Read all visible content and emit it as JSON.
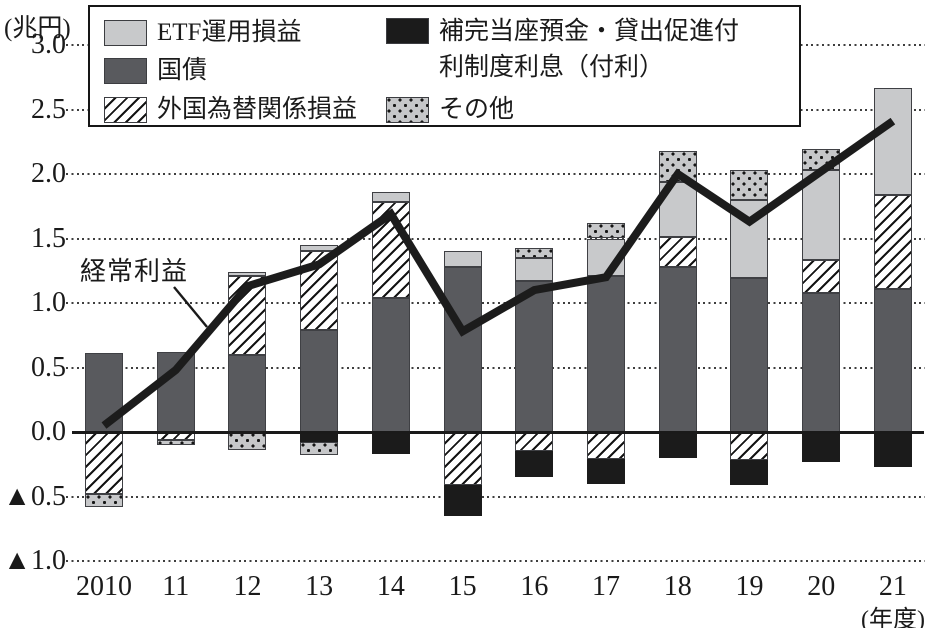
{
  "labels": {
    "y_unit": "(兆円)",
    "x_unit": "(年度)",
    "line_label": "経常利益"
  },
  "legend": {
    "items": [
      {
        "id": "etf",
        "pattern": "light",
        "label": "ETF運用損益"
      },
      {
        "id": "kokusai",
        "pattern": "dark",
        "label": "国債"
      },
      {
        "id": "gaitame",
        "pattern": "hatch",
        "label": "外国為替関係損益"
      },
      {
        "id": "furi",
        "pattern": "black",
        "label": "補完当座預金・貸出促進付利制度利息（付利）"
      },
      {
        "id": "sonota",
        "pattern": "dots",
        "label": "その他"
      }
    ]
  },
  "colors": {
    "light_gray": "#c8c9cb",
    "dark_gray": "#595a5e",
    "black": "#1b1b1b",
    "dots_bg": "#c6c7c9",
    "line": "#1c1c1c"
  },
  "chart_data": {
    "type": "bar",
    "subtype": "stacked-bars-with-line-overlay",
    "unit": "兆円",
    "title": "",
    "xlabel": "年度",
    "ylabel": "兆円",
    "ylim": [
      -1.0,
      3.0
    ],
    "grid": "dotted horizontal gridlines, solid zero axis",
    "legend_position": "top inside box",
    "categories": [
      "2010",
      "11",
      "12",
      "13",
      "14",
      "15",
      "16",
      "17",
      "18",
      "19",
      "20",
      "21"
    ],
    "series_meta": [
      {
        "id": "etf",
        "label": "ETF運用損益",
        "pattern": "light"
      },
      {
        "id": "kokusai",
        "label": "国債",
        "pattern": "dark"
      },
      {
        "id": "gaitame",
        "label": "外国為替関係損益",
        "pattern": "hatch"
      },
      {
        "id": "furi",
        "label": "補完当座預金・貸出促進付利制度利息（付利）",
        "pattern": "black"
      },
      {
        "id": "sonota",
        "label": "その他",
        "pattern": "dots"
      }
    ],
    "yticks": [
      {
        "value": 3.0,
        "label": "3.0"
      },
      {
        "value": 2.5,
        "label": "2.5"
      },
      {
        "value": 2.0,
        "label": "2.0"
      },
      {
        "value": 1.5,
        "label": "1.5"
      },
      {
        "value": 1.0,
        "label": "1.0"
      },
      {
        "value": 0.5,
        "label": "0.5"
      },
      {
        "value": 0.0,
        "label": "0.0"
      },
      {
        "value": -0.5,
        "label": "▲0.5"
      },
      {
        "value": -1.0,
        "label": "▲1.0"
      }
    ],
    "bars": [
      {
        "year": "2010",
        "segments": [
          {
            "series": "kokusai",
            "value": 0.61
          },
          {
            "series": "gaitame",
            "value": -0.48
          },
          {
            "series": "sonota",
            "value": -0.1
          }
        ]
      },
      {
        "year": "11",
        "segments": [
          {
            "series": "kokusai",
            "value": 0.62
          },
          {
            "series": "gaitame",
            "value": -0.06
          },
          {
            "series": "sonota",
            "value": -0.04
          }
        ]
      },
      {
        "year": "12",
        "segments": [
          {
            "series": "kokusai",
            "value": 0.6
          },
          {
            "series": "gaitame",
            "value": 0.61
          },
          {
            "series": "etf",
            "value": 0.03
          },
          {
            "series": "sonota",
            "value": -0.14
          }
        ]
      },
      {
        "year": "13",
        "segments": [
          {
            "series": "kokusai",
            "value": 0.79
          },
          {
            "series": "gaitame",
            "value": 0.61
          },
          {
            "series": "etf",
            "value": 0.05
          },
          {
            "series": "furi",
            "value": -0.08
          },
          {
            "series": "sonota",
            "value": -0.1
          }
        ]
      },
      {
        "year": "14",
        "segments": [
          {
            "series": "kokusai",
            "value": 1.04
          },
          {
            "series": "gaitame",
            "value": 0.74
          },
          {
            "series": "etf",
            "value": 0.08
          },
          {
            "series": "furi",
            "value": -0.17
          }
        ]
      },
      {
        "year": "15",
        "segments": [
          {
            "series": "kokusai",
            "value": 1.28
          },
          {
            "series": "etf",
            "value": 0.12
          },
          {
            "series": "gaitame",
            "value": -0.41
          },
          {
            "series": "furi",
            "value": -0.24
          }
        ]
      },
      {
        "year": "16",
        "segments": [
          {
            "series": "kokusai",
            "value": 1.17
          },
          {
            "series": "etf",
            "value": 0.18
          },
          {
            "series": "sonota",
            "value": 0.08
          },
          {
            "series": "gaitame",
            "value": -0.15
          },
          {
            "series": "furi",
            "value": -0.2
          }
        ]
      },
      {
        "year": "17",
        "segments": [
          {
            "series": "kokusai",
            "value": 1.21
          },
          {
            "series": "etf",
            "value": 0.29
          },
          {
            "series": "sonota",
            "value": 0.12
          },
          {
            "series": "gaitame",
            "value": -0.21
          },
          {
            "series": "furi",
            "value": -0.19
          }
        ]
      },
      {
        "year": "18",
        "segments": [
          {
            "series": "kokusai",
            "value": 1.28
          },
          {
            "series": "gaitame",
            "value": 0.23
          },
          {
            "series": "etf",
            "value": 0.43
          },
          {
            "series": "sonota",
            "value": 0.24
          },
          {
            "series": "furi",
            "value": -0.2
          }
        ]
      },
      {
        "year": "19",
        "segments": [
          {
            "series": "kokusai",
            "value": 1.19
          },
          {
            "series": "etf",
            "value": 0.61
          },
          {
            "series": "sonota",
            "value": 0.23
          },
          {
            "series": "gaitame",
            "value": -0.22
          },
          {
            "series": "furi",
            "value": -0.19
          }
        ]
      },
      {
        "year": "20",
        "segments": [
          {
            "series": "kokusai",
            "value": 1.08
          },
          {
            "series": "gaitame",
            "value": 0.25
          },
          {
            "series": "etf",
            "value": 0.7
          },
          {
            "series": "sonota",
            "value": 0.16
          },
          {
            "series": "furi",
            "value": -0.23
          }
        ]
      },
      {
        "year": "21",
        "segments": [
          {
            "series": "kokusai",
            "value": 1.11
          },
          {
            "series": "gaitame",
            "value": 0.73
          },
          {
            "series": "etf",
            "value": 0.83
          },
          {
            "series": "furi",
            "value": -0.27
          }
        ]
      }
    ],
    "line_series": {
      "name": "経常利益",
      "values": [
        0.05,
        0.48,
        1.13,
        1.3,
        1.69,
        0.78,
        1.1,
        1.2,
        2.0,
        1.63,
        2.02,
        2.41
      ]
    }
  }
}
